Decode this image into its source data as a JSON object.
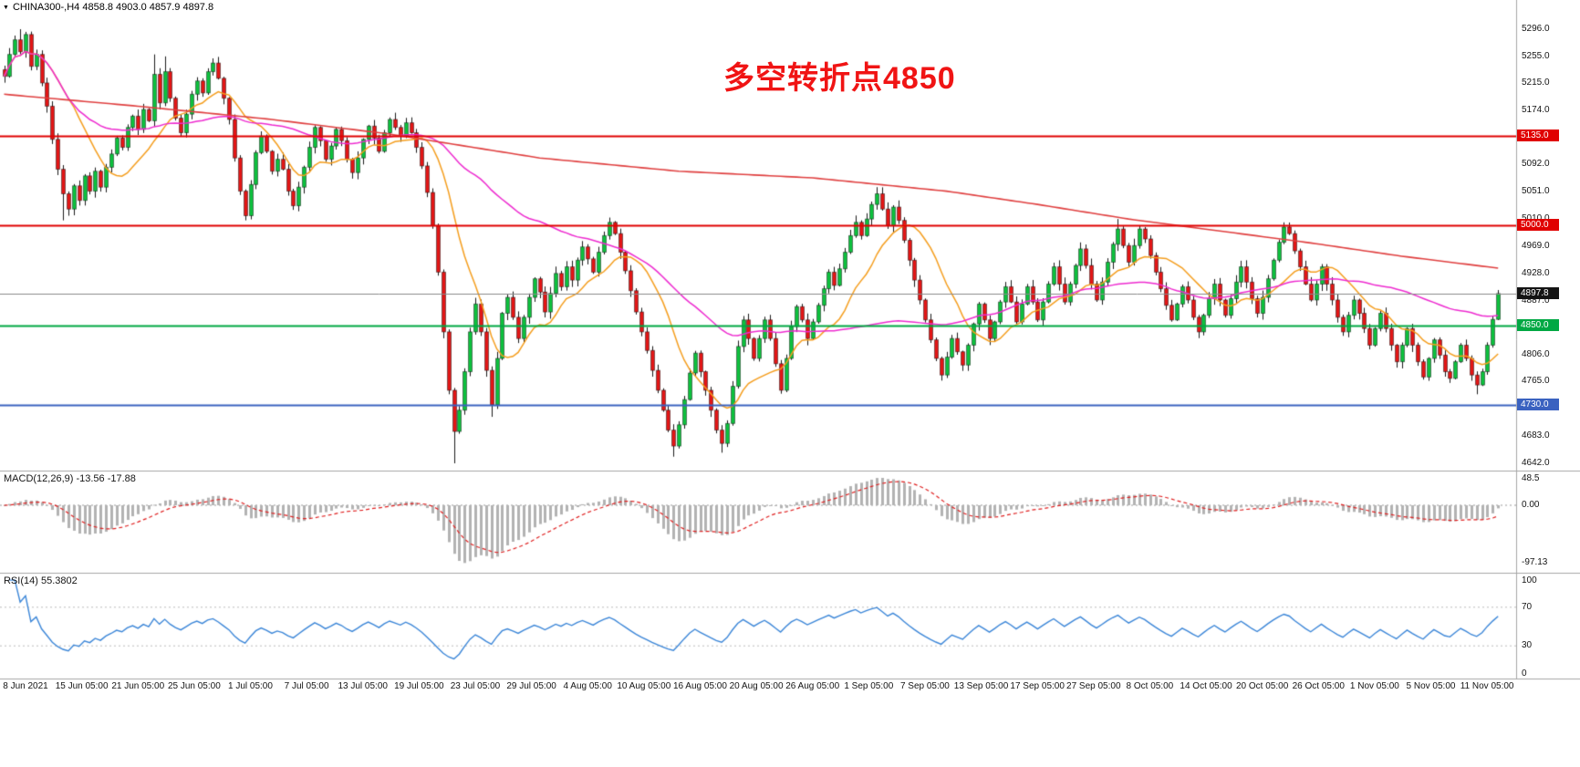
{
  "header": {
    "text": "CHINA300-,H4 4858.8 4903.0 4857.9 4897.8"
  },
  "colors": {
    "background": "#ffffff",
    "separator": "#a6a6a6",
    "axis_text": "#141414"
  },
  "chart_data": {
    "type": "candlestick",
    "symbol": "CHINA300-",
    "timeframe": "H4",
    "current_bar": {
      "open": 4858.8,
      "high": 4903.0,
      "low": 4857.9,
      "close": 4897.8
    },
    "annotation": {
      "text": "多空转折点4850",
      "color": "#f01414"
    },
    "y_axis": {
      "ticks": [
        "5296.0",
        "5255.0",
        "5215.0",
        "5174.0",
        "5133.0",
        "5092.0",
        "5051.0",
        "5010.0",
        "4969.0",
        "4928.0",
        "4887.0",
        "4846.0",
        "4806.0",
        "4765.0",
        "4724.0",
        "4683.0",
        "4642.0"
      ]
    },
    "x_axis": {
      "labels": [
        "8 Jun 2021",
        "15 Jun 05:00",
        "21 Jun 05:00",
        "25 Jun 05:00",
        "1 Jul 05:00",
        "7 Jul 05:00",
        "13 Jul 05:00",
        "19 Jul 05:00",
        "23 Jul 05:00",
        "29 Jul 05:00",
        "4 Aug 05:00",
        "10 Aug 05:00",
        "16 Aug 05:00",
        "20 Aug 05:00",
        "26 Aug 05:00",
        "1 Sep 05:00",
        "7 Sep 05:00",
        "13 Sep 05:00",
        "17 Sep 05:00",
        "27 Sep 05:00",
        "8 Oct 05:00",
        "14 Oct 05:00",
        "20 Oct 05:00",
        "26 Oct 05:00",
        "1 Nov 05:00",
        "5 Nov 05:00",
        "11 Nov 05:00"
      ]
    },
    "horizontal_lines": [
      {
        "price": 5135.0,
        "label": "5135.0",
        "color": "#e00000"
      },
      {
        "price": 5000.0,
        "label": "5000.0",
        "color": "#e00000"
      },
      {
        "price": 4850.0,
        "label": "4850.0",
        "color": "#00a843"
      },
      {
        "price": 4730.0,
        "label": "4730.0",
        "color": "#3a62c0"
      }
    ],
    "current_price_line": {
      "price": 4897.8,
      "label": "4897.8",
      "line_color": "#8a8a8a",
      "label_bg": "#141414"
    },
    "candles": {
      "up_color": "#0cc13d",
      "down_color": "#e31515",
      "wick_color": "#1a1a1a",
      "closes": [
        5225,
        5258,
        5280,
        5262,
        5288,
        5240,
        5258,
        5215,
        5180,
        5130,
        5085,
        5048,
        5025,
        5060,
        5038,
        5075,
        5052,
        5082,
        5058,
        5088,
        5108,
        5132,
        5118,
        5148,
        5165,
        5145,
        5175,
        5158,
        5228,
        5185,
        5232,
        5192,
        5162,
        5140,
        5168,
        5198,
        5218,
        5200,
        5232,
        5245,
        5222,
        5192,
        5160,
        5102,
        5052,
        5015,
        5062,
        5110,
        5135,
        5112,
        5082,
        5100,
        5085,
        5052,
        5030,
        5058,
        5088,
        5118,
        5148,
        5128,
        5100,
        5120,
        5145,
        5128,
        5100,
        5080,
        5102,
        5130,
        5150,
        5132,
        5112,
        5140,
        5160,
        5148,
        5135,
        5155,
        5140,
        5118,
        5090,
        5050,
        5000,
        4930,
        4840,
        4752,
        4690,
        4722,
        4780,
        4840,
        4882,
        4840,
        4782,
        4730,
        4800,
        4868,
        4892,
        4862,
        4830,
        4862,
        4892,
        4920,
        4900,
        4870,
        4898,
        4928,
        4908,
        4938,
        4918,
        4948,
        4968,
        4950,
        4930,
        4960,
        4985,
        5005,
        4988,
        4960,
        4932,
        4902,
        4870,
        4840,
        4812,
        4782,
        4752,
        4722,
        4692,
        4668,
        4700,
        4738,
        4778,
        4808,
        4780,
        4752,
        4722,
        4692,
        4672,
        4702,
        4758,
        4818,
        4858,
        4830,
        4800,
        4830,
        4858,
        4830,
        4792,
        4752,
        4800,
        4848,
        4878,
        4858,
        4830,
        4855,
        4880,
        4905,
        4930,
        4910,
        4935,
        4960,
        4985,
        5005,
        4985,
        5010,
        5032,
        5048,
        5025,
        5000,
        5028,
        5008,
        4978,
        4948,
        4918,
        4888,
        4858,
        4828,
        4800,
        4775,
        4802,
        4830,
        4810,
        4790,
        4820,
        4852,
        4882,
        4858,
        4830,
        4855,
        4885,
        4908,
        4885,
        4855,
        4882,
        4908,
        4885,
        4858,
        4885,
        4912,
        4938,
        4912,
        4885,
        4912,
        4940,
        4965,
        4940,
        4912,
        4888,
        4915,
        4945,
        4972,
        4995,
        4970,
        4945,
        4970,
        4995,
        4980,
        4955,
        4930,
        4905,
        4880,
        4858,
        4882,
        4908,
        4888,
        4862,
        4840,
        4865,
        4890,
        4912,
        4888,
        4865,
        4890,
        4915,
        4938,
        4915,
        4890,
        4868,
        4892,
        4920,
        4948,
        4975,
        4998,
        4988,
        4962,
        4938,
        4912,
        4888,
        4912,
        4938,
        4912,
        4888,
        4862,
        4840,
        4865,
        4888,
        4868,
        4845,
        4820,
        4845,
        4868,
        4845,
        4820,
        4795,
        4820,
        4845,
        4820,
        4795,
        4772,
        4800,
        4828,
        4805,
        4780,
        4770,
        4795,
        4820,
        4800,
        4775,
        4760,
        4780,
        4820,
        4858.8,
        4897.8
      ],
      "wick_overrides": {
        "3": {
          "high": 5296
        },
        "4": {
          "high": 5292
        },
        "11": {
          "low": 5008
        },
        "28": {
          "high": 5258
        },
        "30": {
          "high": 5255
        },
        "39": {
          "high": 5252
        },
        "45": {
          "low": 5008
        },
        "84": {
          "low": 4642
        },
        "91": {
          "low": 4712
        },
        "125": {
          "low": 4652
        },
        "134": {
          "low": 4658
        },
        "163": {
          "high": 5058
        },
        "208": {
          "high": 5010
        },
        "239": {
          "high": 5005
        },
        "275": {
          "low": 4746
        },
        "279": {
          "high": 4903,
          "low": 4857.9
        }
      }
    },
    "moving_averages": [
      {
        "name": "fast-ma",
        "type": "sma",
        "period": 13,
        "color": "#f59e1e"
      },
      {
        "name": "medium-ma",
        "type": "sma",
        "period": 55,
        "color": "#ee2bd0"
      },
      {
        "name": "slow-ma",
        "type": "waypoints",
        "color": "#e04040",
        "points": [
          [
            0,
            5198
          ],
          [
            25,
            5180
          ],
          [
            50,
            5160
          ],
          [
            72,
            5138
          ],
          [
            100,
            5102
          ],
          [
            126,
            5082
          ],
          [
            151,
            5072
          ],
          [
            176,
            5052
          ],
          [
            193,
            5032
          ],
          [
            210,
            5010
          ],
          [
            227,
            4992
          ],
          [
            244,
            4974
          ],
          [
            261,
            4954
          ],
          [
            279,
            4936
          ]
        ]
      }
    ],
    "indicators": [
      {
        "name": "MACD",
        "label": "MACD(12,26,9) -13.56 -17.88",
        "macd_value": -13.56,
        "signal_value": -17.88,
        "y_ticks": [
          "48.5",
          "0.00",
          "-97.13"
        ],
        "histogram_color": "#b3b3b3",
        "signal_color": "#e02020"
      },
      {
        "name": "RSI",
        "label": "RSI(14) 55.3802",
        "value": 55.3802,
        "y_ticks": [
          "100",
          "70",
          "30",
          "0"
        ],
        "line_color": "#3b86d8",
        "levels": [
          70,
          30
        ]
      }
    ]
  }
}
